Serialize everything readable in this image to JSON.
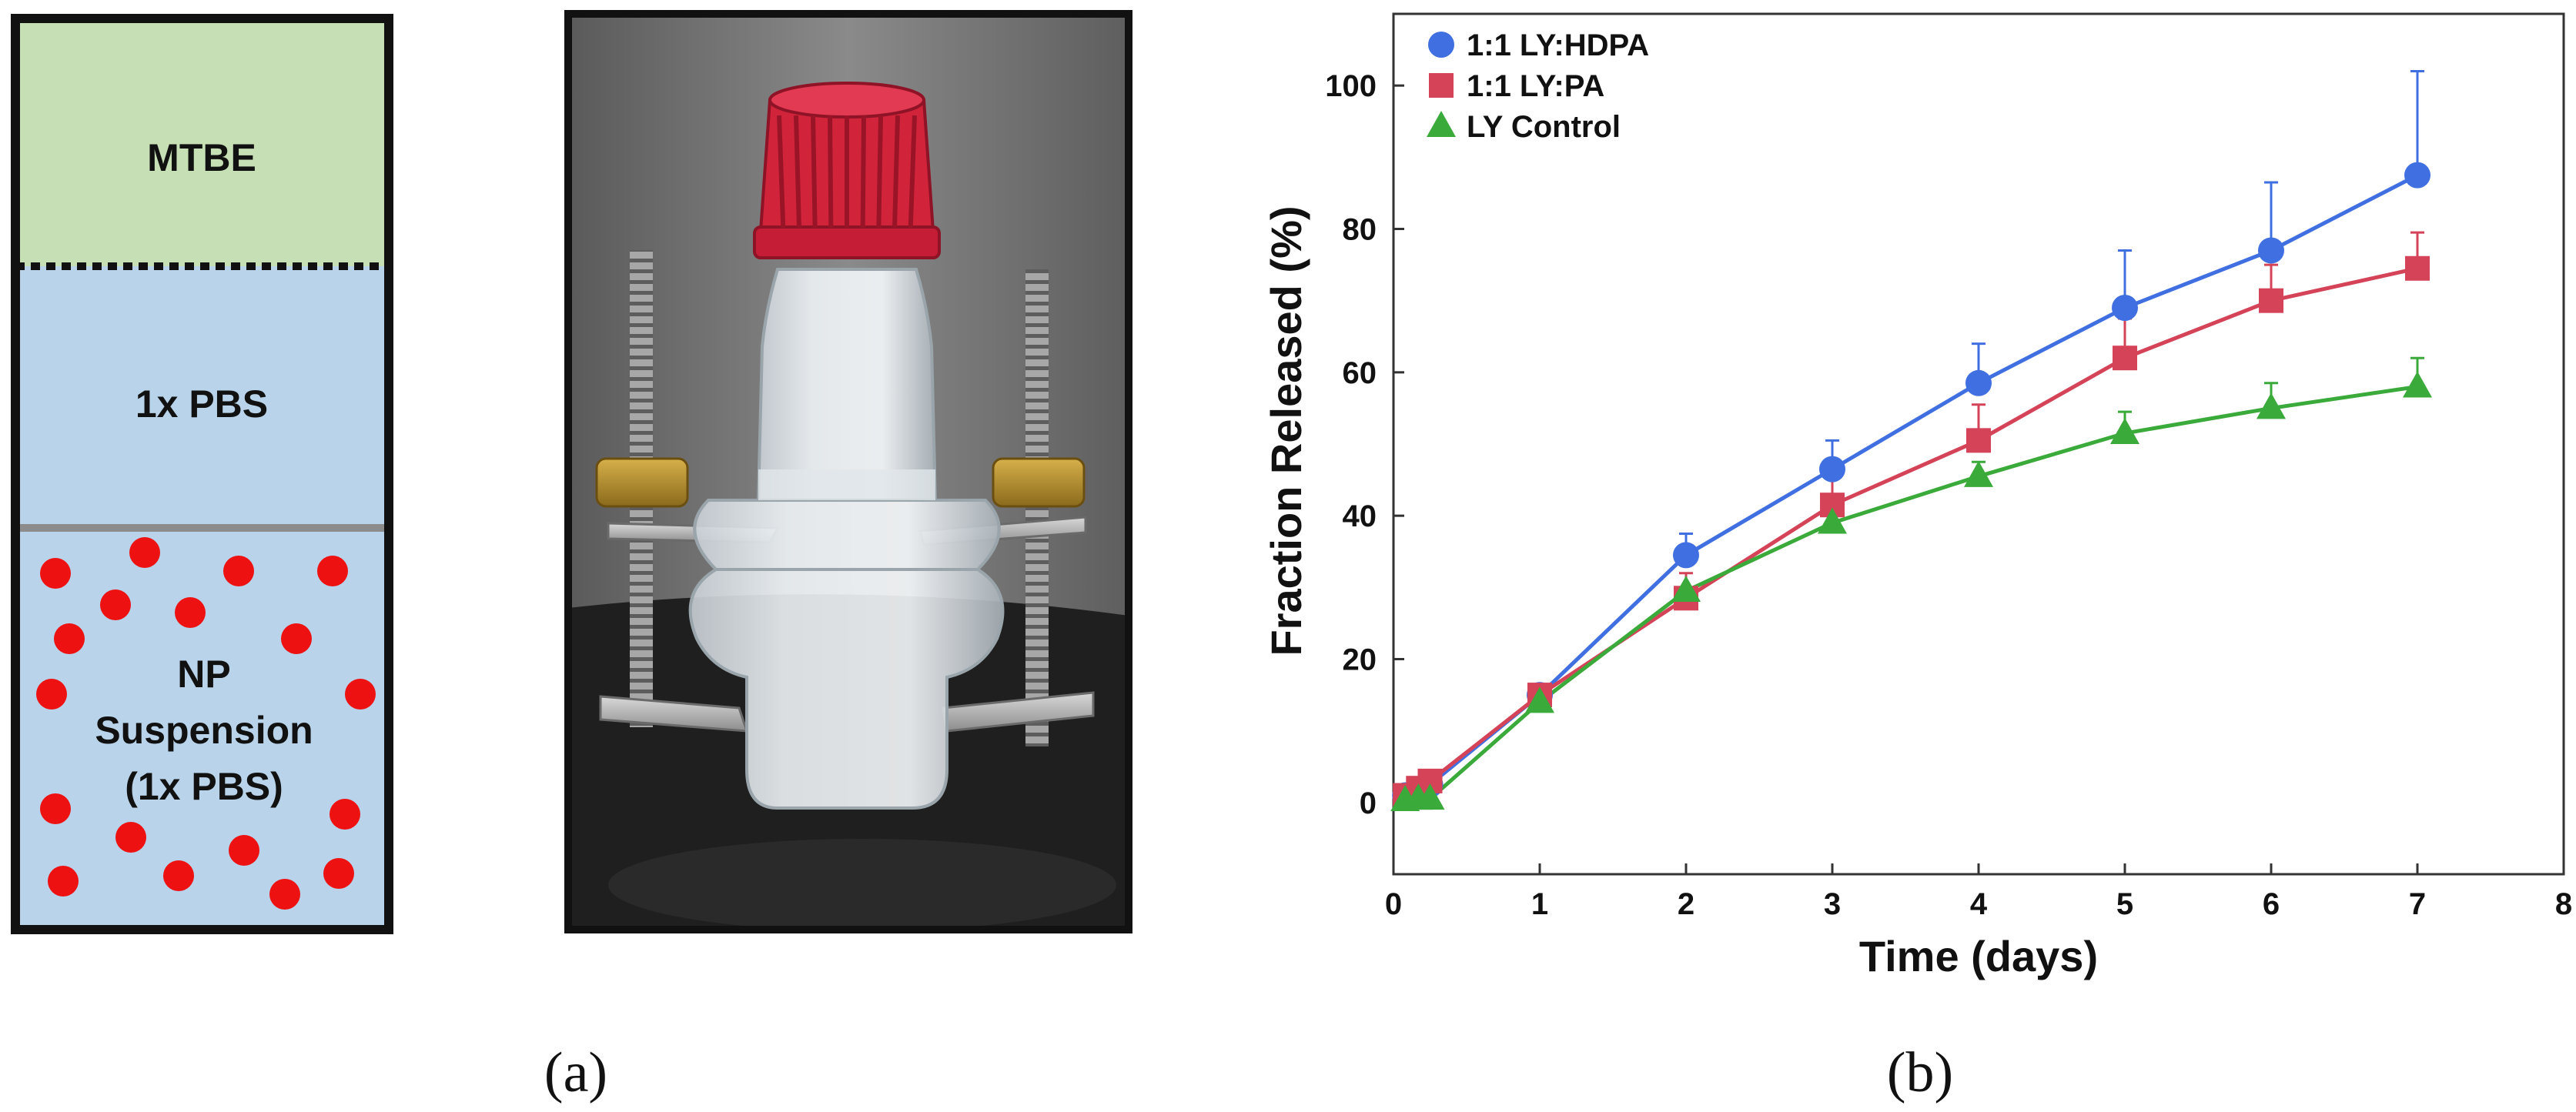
{
  "schematic": {
    "layers": [
      "MTBE",
      "1x PBS"
    ],
    "suspension_lines": [
      "NP",
      "Suspension",
      "(1x PBS)"
    ],
    "colors": {
      "mtbe": "#c7dfb5",
      "pbs": "#b8d3ea",
      "dot": "#ee1111",
      "border": "#111111"
    }
  },
  "photo": {
    "cap_color": "#d1243b",
    "background": "#6f6f6f",
    "bench": "#1d1d1d"
  },
  "panel_labels": {
    "a": "(a)",
    "b": "(b)"
  },
  "chart_data": {
    "type": "line",
    "title": "",
    "xlabel": "Time (days)",
    "ylabel": "Fraction Released (%)",
    "xlim": [
      0,
      8
    ],
    "ylim": [
      -10,
      110
    ],
    "xticks": [
      0,
      1,
      2,
      3,
      4,
      5,
      6,
      7,
      8
    ],
    "yticks": [
      0,
      20,
      40,
      60,
      80,
      100
    ],
    "legend_position": "top-left",
    "grid": false,
    "series": [
      {
        "name": "1:1 LY:HDPA",
        "marker": "circle",
        "color": "#3f6fe0",
        "x": [
          0.08,
          0.17,
          0.25,
          1,
          2,
          3,
          4,
          5,
          6,
          7
        ],
        "y": [
          1.0,
          1.8,
          2.5,
          15.0,
          34.5,
          46.5,
          58.5,
          69.0,
          77.0,
          87.5
        ],
        "err": [
          0,
          0,
          0,
          0,
          3,
          4,
          5.5,
          8,
          9.5,
          14.5
        ]
      },
      {
        "name": "1:1 LY:PA",
        "marker": "square",
        "color": "#d44358",
        "x": [
          0.08,
          0.17,
          0.25,
          1,
          2,
          3,
          4,
          5,
          6,
          7
        ],
        "y": [
          1.0,
          2.0,
          3.0,
          15.0,
          28.5,
          41.5,
          50.5,
          62.0,
          70.0,
          74.5
        ],
        "err": [
          0,
          0,
          0,
          0,
          3.5,
          4,
          5,
          5.5,
          5,
          5
        ]
      },
      {
        "name": "LY Control",
        "marker": "triangle",
        "color": "#3aaa3a",
        "x": [
          0.08,
          0.17,
          0.25,
          1,
          2,
          3,
          4,
          5,
          6,
          7
        ],
        "y": [
          0.3,
          0.5,
          0.5,
          14.0,
          29.5,
          39.0,
          45.5,
          51.5,
          55.0,
          58.0
        ],
        "err": [
          0,
          0,
          0,
          0,
          0,
          3.5,
          2,
          3,
          3.5,
          4
        ]
      }
    ]
  }
}
